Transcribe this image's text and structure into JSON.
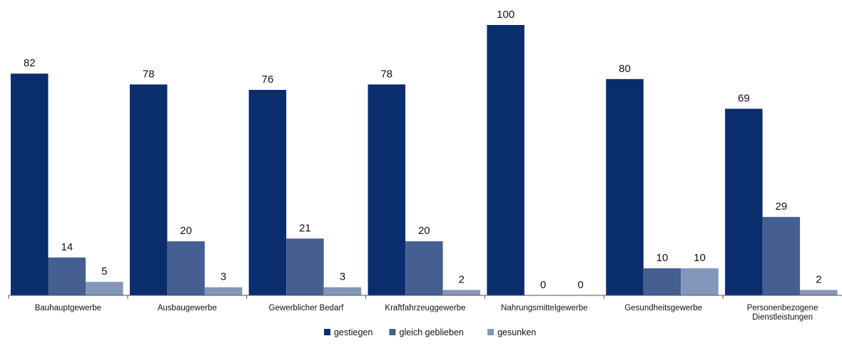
{
  "chart_data": {
    "type": "bar",
    "categories": [
      [
        "Bauhauptgewerbe"
      ],
      [
        "Ausbaugewerbe"
      ],
      [
        "Gewerblicher Bedarf"
      ],
      [
        "Kraftfahrzeuggewerbe"
      ],
      [
        "Nahrungsmittelgewerbe"
      ],
      [
        "Gesundheitsgewerbe"
      ],
      [
        "Personenbezogene",
        "Dienstleistungen"
      ]
    ],
    "series": [
      {
        "name": "gestiegen",
        "color": "#0a2d6e",
        "values": [
          82,
          78,
          76,
          78,
          100,
          80,
          69
        ]
      },
      {
        "name": "gleich geblieben",
        "color": "#465f91",
        "values": [
          14,
          20,
          21,
          20,
          0,
          10,
          29
        ]
      },
      {
        "name": "gesunken",
        "color": "#8497ba",
        "values": [
          5,
          3,
          3,
          2,
          0,
          10,
          2
        ]
      }
    ],
    "ylim": [
      0,
      100
    ],
    "grid": false,
    "legend_position": "bottom-center",
    "data_labels": true
  }
}
